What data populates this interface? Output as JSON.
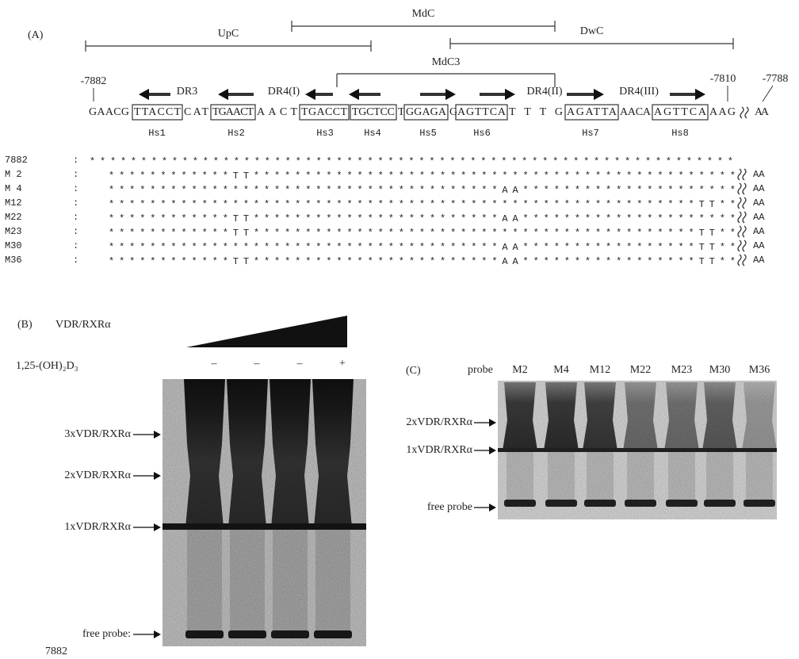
{
  "panel_a": {
    "label": "(A)",
    "regions": [
      "UpC",
      "MdC",
      "DwC",
      "MdC3"
    ],
    "positions": [
      "-7882",
      "-7810",
      "-7788"
    ],
    "elements": [
      "DR3",
      "DR4(I)",
      "DR4(II)",
      "DR4(III)"
    ],
    "sequence": [
      "GAACG",
      "TTACCT",
      "CAT",
      "TGAACT",
      "AACT",
      "TGACCT",
      "TGCTCC",
      "T",
      "GGAGA",
      "G",
      "AGTTCA",
      "TTTG",
      "AGATTA",
      "AACA",
      "AGTTCA",
      "AAG",
      "AA"
    ],
    "half_sites": [
      "Hs1",
      "Hs2",
      "Hs3",
      "Hs4",
      "Hs5",
      "Hs6",
      "Hs7",
      "Hs8"
    ],
    "alignment": [
      {
        "name": "7882",
        "separator": ":",
        "sequence": "***************************************************************"
      },
      {
        "name": "M 2",
        "separator": ":",
        "sequence": "************TT***********************************************",
        "tail": "AA"
      },
      {
        "name": "M 4",
        "separator": ":",
        "sequence": "**************************************AA*********************",
        "tail": "AA"
      },
      {
        "name": "M12",
        "separator": ":",
        "sequence": "*********************************************************TT**",
        "tail": "AA"
      },
      {
        "name": "M22",
        "separator": ":",
        "sequence": "************TT************************AA*********************",
        "tail": "AA"
      },
      {
        "name": "M23",
        "separator": ":",
        "sequence": "************TT*******************************************TT**",
        "tail": "AA"
      },
      {
        "name": "M30",
        "separator": ":",
        "sequence": "**************************************AA*****************TT**",
        "tail": "AA"
      },
      {
        "name": "M36",
        "separator": ":",
        "sequence": "************TT************************AA*****************TT**",
        "tail": "AA"
      }
    ]
  },
  "panel_b": {
    "label": "(B)",
    "protein": "VDR/RXRα",
    "ligand": "1,25-(OH)₂D₃",
    "lanes": [
      "–",
      "–",
      "–",
      "+"
    ],
    "bands": [
      "3xVDR/RXRα",
      "2xVDR/RXRα",
      "1xVDR/RXRα",
      "free probe:"
    ],
    "probe_name": "7882"
  },
  "panel_c": {
    "label": "(C)",
    "probe_label": "probe",
    "lanes": [
      "M2",
      "M4",
      "M12",
      "M22",
      "M23",
      "M30",
      "M36"
    ],
    "bands": [
      "2xVDR/RXRα",
      "1xVDR/RXRα",
      "free probe"
    ]
  }
}
